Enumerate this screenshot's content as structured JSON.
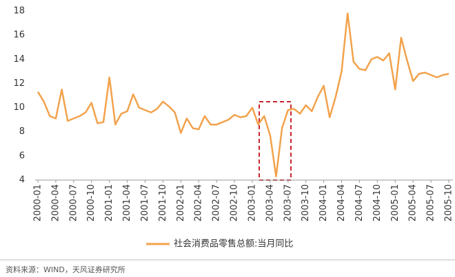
{
  "chart_data": {
    "type": "line",
    "categories": [
      "2000-01",
      null,
      null,
      "2000-04",
      null,
      null,
      "2000-07",
      null,
      null,
      "2000-10",
      null,
      null,
      "2001-01",
      null,
      null,
      "2001-04",
      null,
      null,
      "2001-07",
      null,
      null,
      "2001-10",
      null,
      null,
      "2002-01",
      null,
      null,
      "2002-04",
      null,
      null,
      "2002-07",
      null,
      null,
      "2002-10",
      null,
      null,
      "2003-01",
      null,
      null,
      "2003-04",
      null,
      null,
      "2003-07",
      null,
      null,
      "2003-10",
      null,
      null,
      "2004-01",
      null,
      null,
      "2004-04",
      null,
      null,
      "2004-07",
      null,
      null,
      "2004-10",
      null,
      null,
      "2005-01",
      null,
      null,
      "2005-04",
      null,
      null,
      "2005-07",
      null,
      null,
      "2005-10"
    ],
    "series": [
      {
        "name": "社会消费品零售总额:当月同比",
        "color": "#f2a24c",
        "values": [
          11.3,
          10.5,
          9.3,
          9.1,
          11.5,
          8.9,
          9.1,
          9.3,
          9.6,
          10.4,
          8.7,
          8.8,
          12.5,
          8.6,
          9.5,
          9.7,
          11.1,
          10.0,
          9.8,
          9.6,
          9.9,
          10.5,
          10.1,
          9.6,
          7.9,
          9.1,
          8.3,
          8.2,
          9.3,
          8.6,
          8.6,
          8.8,
          9.0,
          9.4,
          9.2,
          9.3,
          10.0,
          8.6,
          9.3,
          7.7,
          4.3,
          8.3,
          9.8,
          9.9,
          9.5,
          10.2,
          9.7,
          10.9,
          11.8,
          9.2,
          10.9,
          13.0,
          17.8,
          13.8,
          13.2,
          13.1,
          14.0,
          14.2,
          13.9,
          14.5,
          11.5,
          15.8,
          13.9,
          12.2,
          12.8,
          12.9,
          12.7,
          12.5,
          12.7,
          12.8
        ]
      }
    ],
    "ylim": [
      4,
      18
    ],
    "yticks": [
      4,
      6,
      8,
      10,
      12,
      14,
      16,
      18
    ],
    "grid": false,
    "source": "资料来源：WIND，天风证券研究所"
  }
}
